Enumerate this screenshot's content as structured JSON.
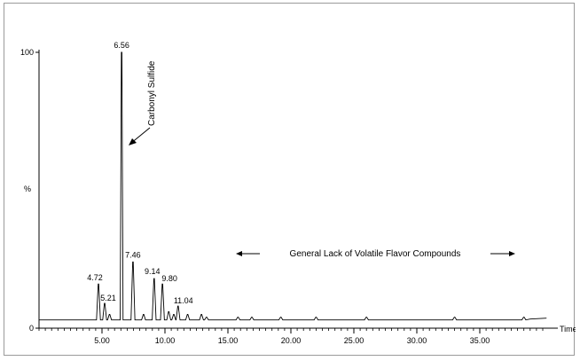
{
  "chart_data": {
    "type": "line",
    "title": "",
    "xlabel": "Time",
    "ylabel": "%",
    "x_range": [
      0,
      40
    ],
    "y_range": [
      0,
      100
    ],
    "x_ticks": [
      5,
      10,
      15,
      20,
      25,
      30,
      35
    ],
    "x_tick_labels": [
      "5.00",
      "10.00",
      "15.00",
      "20.00",
      "25.00",
      "30.00",
      "35.00"
    ],
    "y_tick_labels": [
      "100",
      "0"
    ],
    "grid": false,
    "baseline": 3,
    "peaks": [
      {
        "x": 4.72,
        "y": 16,
        "label": "4.72"
      },
      {
        "x": 5.21,
        "y": 9,
        "label": "5.21"
      },
      {
        "x": 6.56,
        "y": 100,
        "label": "6.56"
      },
      {
        "x": 7.46,
        "y": 24,
        "label": "7.46"
      },
      {
        "x": 9.14,
        "y": 18,
        "label": "9.14"
      },
      {
        "x": 9.8,
        "y": 16,
        "label": "9.80"
      },
      {
        "x": 11.04,
        "y": 8,
        "label": "11.04"
      }
    ],
    "minor_peaks": [
      {
        "x": 5.6,
        "y": 5
      },
      {
        "x": 8.3,
        "y": 5
      },
      {
        "x": 10.3,
        "y": 6
      },
      {
        "x": 10.7,
        "y": 5
      },
      {
        "x": 11.8,
        "y": 5
      },
      {
        "x": 12.9,
        "y": 5
      },
      {
        "x": 13.3,
        "y": 4
      },
      {
        "x": 15.8,
        "y": 4
      },
      {
        "x": 16.9,
        "y": 4
      },
      {
        "x": 19.2,
        "y": 4
      },
      {
        "x": 22.0,
        "y": 4
      },
      {
        "x": 26.0,
        "y": 4
      },
      {
        "x": 33.0,
        "y": 4
      },
      {
        "x": 38.5,
        "y": 4
      }
    ],
    "annotations": [
      {
        "text": "Carbonyl Sulfide",
        "target_x": 6.56
      },
      {
        "text": "General Lack of Volatile Flavor Compounds"
      }
    ]
  }
}
